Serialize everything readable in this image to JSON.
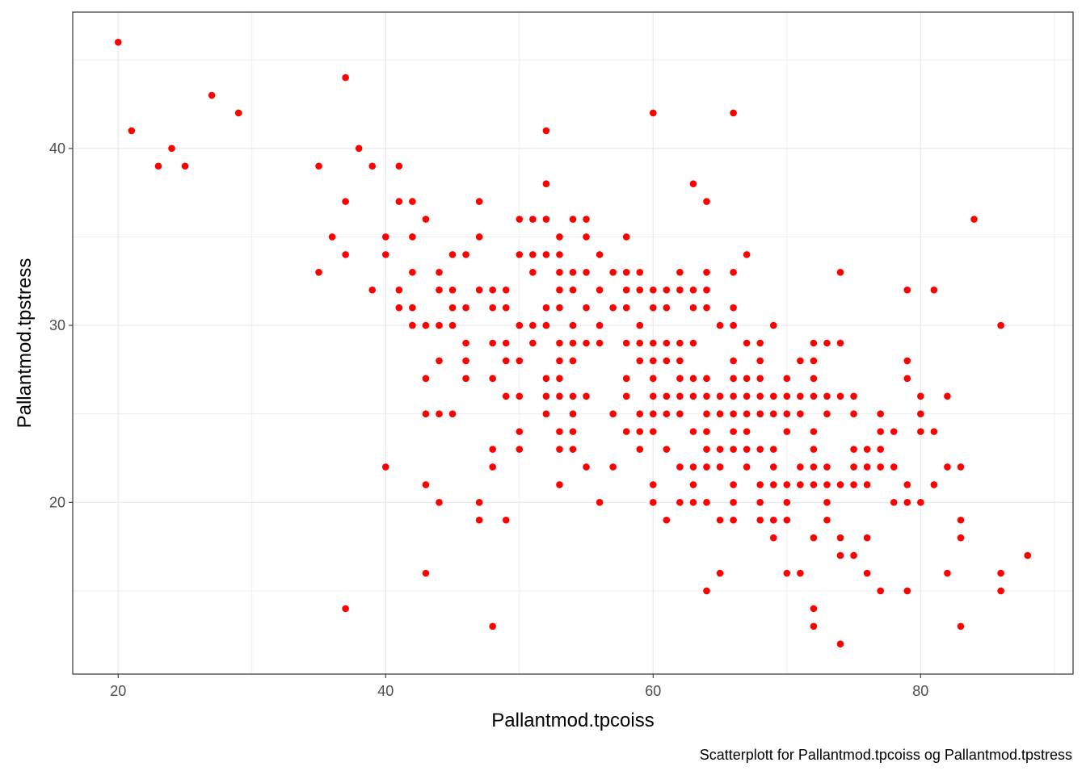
{
  "chart_data": {
    "type": "scatter",
    "title": "",
    "xlabel": "Pallantmod.tpcoiss",
    "ylabel": "Pallantmod.tpstress",
    "caption": "Scatterplott for Pallantmod.tpcoiss og Pallantmod.tpstress",
    "xlim": [
      16.6,
      91.4
    ],
    "ylim": [
      10.3,
      47.7
    ],
    "x_ticks": [
      20,
      40,
      60,
      80
    ],
    "y_ticks": [
      20,
      30,
      40
    ],
    "x_tick_labels": [
      "20",
      "40",
      "60",
      "80"
    ],
    "y_tick_labels": [
      "20",
      "30",
      "40"
    ],
    "grid": true,
    "legend": "none",
    "point_color": "#ff0000",
    "points": [
      [
        20,
        46
      ],
      [
        21,
        41
      ],
      [
        23,
        39
      ],
      [
        24,
        40
      ],
      [
        25,
        39
      ],
      [
        27,
        43
      ],
      [
        29,
        42
      ],
      [
        35,
        39
      ],
      [
        35,
        33
      ],
      [
        36,
        35
      ],
      [
        37,
        44
      ],
      [
        37,
        37
      ],
      [
        37,
        34
      ],
      [
        37,
        14
      ],
      [
        38,
        40
      ],
      [
        39,
        39
      ],
      [
        39,
        32
      ],
      [
        40,
        35
      ],
      [
        40,
        34
      ],
      [
        40,
        22
      ],
      [
        41,
        39
      ],
      [
        41,
        37
      ],
      [
        41,
        32
      ],
      [
        41,
        31
      ],
      [
        42,
        37
      ],
      [
        42,
        35
      ],
      [
        42,
        33
      ],
      [
        42,
        31
      ],
      [
        42,
        30
      ],
      [
        43,
        36
      ],
      [
        43,
        30
      ],
      [
        43,
        27
      ],
      [
        43,
        25
      ],
      [
        43,
        21
      ],
      [
        43,
        16
      ],
      [
        44,
        33
      ],
      [
        44,
        32
      ],
      [
        44,
        30
      ],
      [
        44,
        28
      ],
      [
        44,
        25
      ],
      [
        44,
        20
      ],
      [
        45,
        34
      ],
      [
        45,
        32
      ],
      [
        45,
        31
      ],
      [
        45,
        30
      ],
      [
        45,
        25
      ],
      [
        46,
        34
      ],
      [
        46,
        31
      ],
      [
        46,
        29
      ],
      [
        46,
        28
      ],
      [
        46,
        27
      ],
      [
        47,
        37
      ],
      [
        47,
        35
      ],
      [
        47,
        32
      ],
      [
        47,
        20
      ],
      [
        47,
        19
      ],
      [
        48,
        32
      ],
      [
        48,
        31
      ],
      [
        48,
        29
      ],
      [
        48,
        27
      ],
      [
        48,
        23
      ],
      [
        48,
        22
      ],
      [
        48,
        13
      ],
      [
        49,
        32
      ],
      [
        49,
        31
      ],
      [
        49,
        29
      ],
      [
        49,
        28
      ],
      [
        49,
        26
      ],
      [
        49,
        19
      ],
      [
        50,
        36
      ],
      [
        50,
        34
      ],
      [
        50,
        30
      ],
      [
        50,
        28
      ],
      [
        50,
        26
      ],
      [
        50,
        24
      ],
      [
        50,
        23
      ],
      [
        51,
        36
      ],
      [
        51,
        34
      ],
      [
        51,
        33
      ],
      [
        51,
        30
      ],
      [
        51,
        29
      ],
      [
        52,
        41
      ],
      [
        52,
        38
      ],
      [
        52,
        36
      ],
      [
        52,
        34
      ],
      [
        52,
        31
      ],
      [
        52,
        30
      ],
      [
        52,
        27
      ],
      [
        52,
        26
      ],
      [
        52,
        25
      ],
      [
        53,
        35
      ],
      [
        53,
        34
      ],
      [
        53,
        33
      ],
      [
        53,
        32
      ],
      [
        53,
        31
      ],
      [
        53,
        29
      ],
      [
        53,
        28
      ],
      [
        53,
        27
      ],
      [
        53,
        26
      ],
      [
        53,
        24
      ],
      [
        53,
        23
      ],
      [
        53,
        21
      ],
      [
        54,
        36
      ],
      [
        54,
        33
      ],
      [
        54,
        32
      ],
      [
        54,
        30
      ],
      [
        54,
        29
      ],
      [
        54,
        28
      ],
      [
        54,
        26
      ],
      [
        54,
        25
      ],
      [
        54,
        24
      ],
      [
        54,
        23
      ],
      [
        55,
        36
      ],
      [
        55,
        35
      ],
      [
        55,
        33
      ],
      [
        55,
        31
      ],
      [
        55,
        29
      ],
      [
        55,
        26
      ],
      [
        55,
        22
      ],
      [
        56,
        34
      ],
      [
        56,
        32
      ],
      [
        56,
        30
      ],
      [
        56,
        29
      ],
      [
        56,
        20
      ],
      [
        57,
        33
      ],
      [
        57,
        31
      ],
      [
        57,
        25
      ],
      [
        57,
        22
      ],
      [
        58,
        35
      ],
      [
        58,
        33
      ],
      [
        58,
        32
      ],
      [
        58,
        31
      ],
      [
        58,
        29
      ],
      [
        58,
        27
      ],
      [
        58,
        26
      ],
      [
        58,
        24
      ],
      [
        59,
        33
      ],
      [
        59,
        32
      ],
      [
        59,
        30
      ],
      [
        59,
        29
      ],
      [
        59,
        28
      ],
      [
        59,
        25
      ],
      [
        59,
        24
      ],
      [
        59,
        23
      ],
      [
        60,
        42
      ],
      [
        60,
        32
      ],
      [
        60,
        31
      ],
      [
        60,
        29
      ],
      [
        60,
        28
      ],
      [
        60,
        27
      ],
      [
        60,
        26
      ],
      [
        60,
        25
      ],
      [
        60,
        24
      ],
      [
        60,
        21
      ],
      [
        60,
        20
      ],
      [
        61,
        32
      ],
      [
        61,
        31
      ],
      [
        61,
        29
      ],
      [
        61,
        28
      ],
      [
        61,
        26
      ],
      [
        61,
        25
      ],
      [
        61,
        23
      ],
      [
        61,
        19
      ],
      [
        62,
        33
      ],
      [
        62,
        32
      ],
      [
        62,
        29
      ],
      [
        62,
        28
      ],
      [
        62,
        27
      ],
      [
        62,
        26
      ],
      [
        62,
        25
      ],
      [
        62,
        22
      ],
      [
        62,
        20
      ],
      [
        63,
        38
      ],
      [
        63,
        32
      ],
      [
        63,
        31
      ],
      [
        63,
        29
      ],
      [
        63,
        27
      ],
      [
        63,
        26
      ],
      [
        63,
        24
      ],
      [
        63,
        22
      ],
      [
        63,
        21
      ],
      [
        63,
        20
      ],
      [
        64,
        37
      ],
      [
        64,
        33
      ],
      [
        64,
        32
      ],
      [
        64,
        31
      ],
      [
        64,
        27
      ],
      [
        64,
        26
      ],
      [
        64,
        25
      ],
      [
        64,
        24
      ],
      [
        64,
        23
      ],
      [
        64,
        22
      ],
      [
        64,
        20
      ],
      [
        64,
        15
      ],
      [
        65,
        30
      ],
      [
        65,
        26
      ],
      [
        65,
        25
      ],
      [
        65,
        23
      ],
      [
        65,
        22
      ],
      [
        65,
        19
      ],
      [
        65,
        16
      ],
      [
        66,
        42
      ],
      [
        66,
        33
      ],
      [
        66,
        31
      ],
      [
        66,
        30
      ],
      [
        66,
        28
      ],
      [
        66,
        27
      ],
      [
        66,
        26
      ],
      [
        66,
        25
      ],
      [
        66,
        24
      ],
      [
        66,
        23
      ],
      [
        66,
        21
      ],
      [
        66,
        20
      ],
      [
        66,
        19
      ],
      [
        67,
        34
      ],
      [
        67,
        29
      ],
      [
        67,
        27
      ],
      [
        67,
        26
      ],
      [
        67,
        25
      ],
      [
        67,
        24
      ],
      [
        67,
        23
      ],
      [
        67,
        22
      ],
      [
        68,
        29
      ],
      [
        68,
        28
      ],
      [
        68,
        27
      ],
      [
        68,
        26
      ],
      [
        68,
        25
      ],
      [
        68,
        23
      ],
      [
        68,
        21
      ],
      [
        68,
        20
      ],
      [
        68,
        19
      ],
      [
        69,
        30
      ],
      [
        69,
        26
      ],
      [
        69,
        25
      ],
      [
        69,
        23
      ],
      [
        69,
        22
      ],
      [
        69,
        21
      ],
      [
        69,
        19
      ],
      [
        69,
        18
      ],
      [
        70,
        27
      ],
      [
        70,
        26
      ],
      [
        70,
        25
      ],
      [
        70,
        24
      ],
      [
        70,
        21
      ],
      [
        70,
        20
      ],
      [
        70,
        19
      ],
      [
        70,
        16
      ],
      [
        71,
        28
      ],
      [
        71,
        26
      ],
      [
        71,
        25
      ],
      [
        71,
        22
      ],
      [
        71,
        21
      ],
      [
        71,
        16
      ],
      [
        72,
        29
      ],
      [
        72,
        28
      ],
      [
        72,
        27
      ],
      [
        72,
        26
      ],
      [
        72,
        24
      ],
      [
        72,
        23
      ],
      [
        72,
        22
      ],
      [
        72,
        21
      ],
      [
        72,
        18
      ],
      [
        72,
        14
      ],
      [
        72,
        13
      ],
      [
        73,
        29
      ],
      [
        73,
        26
      ],
      [
        73,
        25
      ],
      [
        73,
        22
      ],
      [
        73,
        21
      ],
      [
        73,
        20
      ],
      [
        73,
        19
      ],
      [
        74,
        33
      ],
      [
        74,
        29
      ],
      [
        74,
        26
      ],
      [
        74,
        21
      ],
      [
        74,
        18
      ],
      [
        74,
        17
      ],
      [
        74,
        12
      ],
      [
        75,
        26
      ],
      [
        75,
        25
      ],
      [
        75,
        23
      ],
      [
        75,
        22
      ],
      [
        75,
        21
      ],
      [
        75,
        17
      ],
      [
        76,
        23
      ],
      [
        76,
        22
      ],
      [
        76,
        21
      ],
      [
        76,
        18
      ],
      [
        76,
        16
      ],
      [
        77,
        25
      ],
      [
        77,
        24
      ],
      [
        77,
        23
      ],
      [
        77,
        22
      ],
      [
        77,
        15
      ],
      [
        78,
        24
      ],
      [
        78,
        22
      ],
      [
        78,
        20
      ],
      [
        79,
        32
      ],
      [
        79,
        28
      ],
      [
        79,
        27
      ],
      [
        79,
        21
      ],
      [
        79,
        20
      ],
      [
        79,
        15
      ],
      [
        80,
        26
      ],
      [
        80,
        25
      ],
      [
        80,
        24
      ],
      [
        80,
        20
      ],
      [
        81,
        32
      ],
      [
        81,
        24
      ],
      [
        81,
        21
      ],
      [
        82,
        26
      ],
      [
        82,
        22
      ],
      [
        82,
        16
      ],
      [
        83,
        22
      ],
      [
        83,
        19
      ],
      [
        83,
        18
      ],
      [
        83,
        13
      ],
      [
        84,
        36
      ],
      [
        86,
        30
      ],
      [
        86,
        16
      ],
      [
        86,
        15
      ],
      [
        88,
        17
      ]
    ]
  }
}
